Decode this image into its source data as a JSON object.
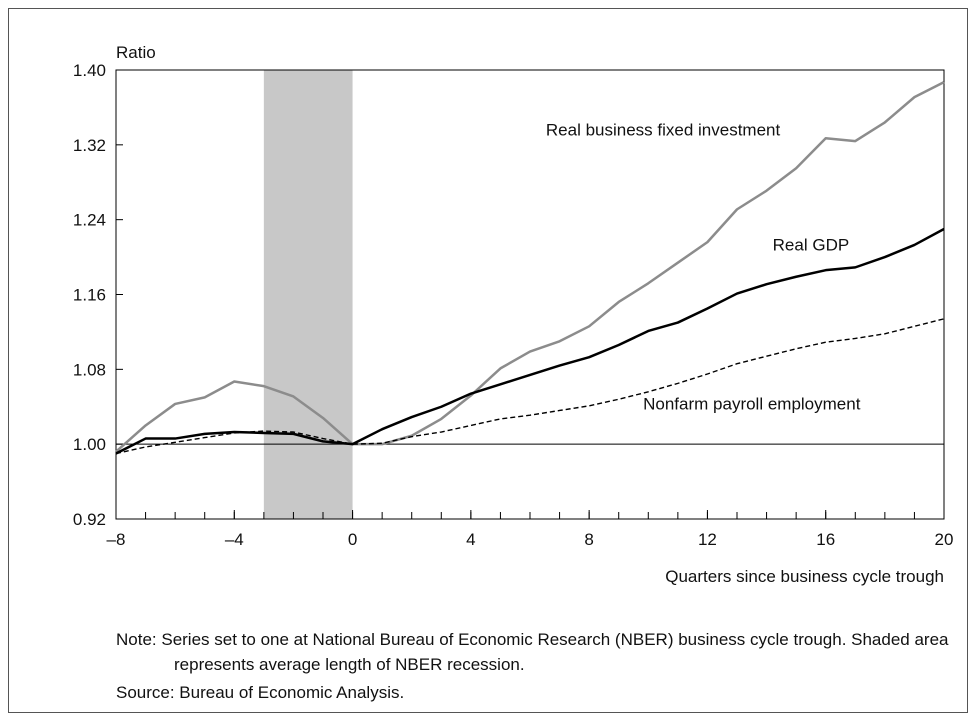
{
  "chart_data": {
    "type": "line",
    "y_label": "Ratio",
    "x_label": "Quarters since business cycle trough",
    "note": "Note: Series set to one at National Bureau of Economic Research (NBER) business cycle trough. Shaded area represents average length of NBER recession.",
    "source": "Source: Bureau of Economic Analysis.",
    "x": [
      -8,
      -7,
      -6,
      -5,
      -4,
      -3,
      -2,
      -1,
      0,
      1,
      2,
      3,
      4,
      5,
      6,
      7,
      8,
      9,
      10,
      11,
      12,
      13,
      14,
      15,
      16,
      17,
      18,
      19,
      20
    ],
    "series": [
      {
        "name": "Real business fixed investment",
        "color": "#8c8c8c",
        "dash": false,
        "width": 2.5,
        "label_at": [
          10.5,
          1.33
        ],
        "values": [
          0.992,
          1.02,
          1.043,
          1.05,
          1.067,
          1.062,
          1.051,
          1.028,
          1.0,
          1.0,
          1.009,
          1.027,
          1.052,
          1.081,
          1.099,
          1.11,
          1.126,
          1.152,
          1.172,
          1.194,
          1.216,
          1.251,
          1.271,
          1.295,
          1.327,
          1.324,
          1.344,
          1.371,
          1.387
        ]
      },
      {
        "name": "Real GDP",
        "color": "#000000",
        "dash": false,
        "width": 2.5,
        "label_at": [
          15.5,
          1.207
        ],
        "values": [
          0.99,
          1.006,
          1.006,
          1.011,
          1.013,
          1.012,
          1.011,
          1.003,
          1.0,
          1.016,
          1.029,
          1.04,
          1.054,
          1.064,
          1.074,
          1.084,
          1.093,
          1.106,
          1.121,
          1.13,
          1.145,
          1.161,
          1.171,
          1.179,
          1.186,
          1.189,
          1.2,
          1.213,
          1.23
        ]
      },
      {
        "name": "Nonfarm payroll employment",
        "color": "#000000",
        "dash": true,
        "width": 1.4,
        "label_at": [
          13.5,
          1.037
        ],
        "values": [
          0.99,
          0.997,
          1.002,
          1.007,
          1.012,
          1.014,
          1.013,
          1.006,
          1.0,
          1.001,
          1.008,
          1.013,
          1.02,
          1.027,
          1.031,
          1.036,
          1.041,
          1.048,
          1.056,
          1.065,
          1.075,
          1.086,
          1.094,
          1.102,
          1.109,
          1.113,
          1.118,
          1.126,
          1.134
        ]
      }
    ],
    "xlim": [
      -8,
      20
    ],
    "xticks": [
      {
        "value": -8,
        "label": "–8"
      },
      {
        "value": -4,
        "label": "–4"
      },
      0,
      4,
      8,
      12,
      16,
      20
    ],
    "x_minor_ticks": [
      -8,
      -7,
      -6,
      -5,
      -4,
      -3,
      -2,
      -1,
      0,
      1,
      2,
      3,
      4,
      5,
      6,
      7,
      8,
      9,
      10,
      11,
      12,
      13,
      14,
      15,
      16,
      17,
      18,
      19,
      20
    ],
    "ylim": [
      0.92,
      1.4
    ],
    "yticks": [
      0.92,
      {
        "value": 1.0,
        "label": "1.00"
      },
      1.08,
      1.16,
      1.24,
      1.32,
      {
        "value": 1.4,
        "label": "1.40"
      }
    ],
    "shaded_region": [
      -3,
      0
    ],
    "shade_color": "#c8c8c8",
    "reference_line": 1.0
  }
}
